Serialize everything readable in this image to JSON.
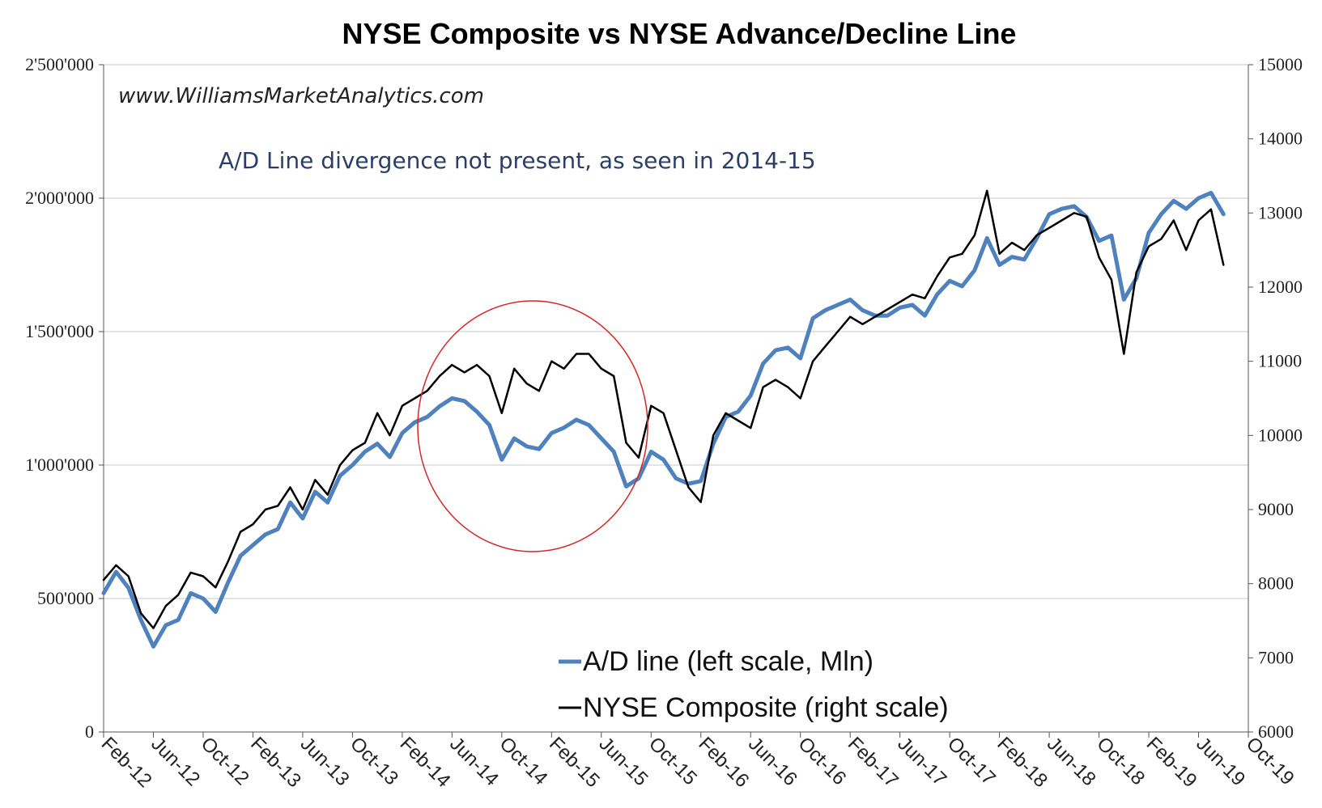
{
  "chart_data": {
    "type": "line",
    "title": "NYSE Composite vs NYSE Advance/Decline Line",
    "watermark": "www.WilliamsMarketAnalytics.com",
    "annotation": "A/D Line divergence not present, as seen in 2014-15",
    "x_tick_labels": [
      "Feb-12",
      "Jun-12",
      "Oct-12",
      "Feb-13",
      "Jun-13",
      "Oct-13",
      "Feb-14",
      "Jun-14",
      "Oct-14",
      "Feb-15",
      "Jun-15",
      "Oct-15",
      "Feb-16",
      "Jun-16",
      "Oct-16",
      "Feb-17",
      "Jun-17",
      "Oct-17",
      "Feb-18",
      "Jun-18",
      "Oct-18",
      "Feb-19",
      "Jun-19",
      "Oct-19"
    ],
    "y_left": {
      "min": 0,
      "max": 2500000,
      "ticks": [
        0,
        500000,
        1000000,
        1500000,
        2000000,
        2500000
      ],
      "tick_labels": [
        "0",
        "500'000",
        "1'000'000",
        "1'500'000",
        "2'000'000",
        "2'500'000"
      ]
    },
    "y_right": {
      "min": 6000,
      "max": 15000,
      "ticks": [
        6000,
        7000,
        8000,
        9000,
        10000,
        11000,
        12000,
        13000,
        14000,
        15000
      ],
      "tick_labels": [
        "6000",
        "7000",
        "8000",
        "9000",
        "10000",
        "11000",
        "12000",
        "13000",
        "14000",
        "15000"
      ]
    },
    "grid": "horizontal",
    "legend_position": "bottom-center",
    "highlight": "circle around Jun-14 to Oct-15",
    "series": [
      {
        "name": "A/D line (left scale, Mln)",
        "axis": "left",
        "color": "#4f81bd",
        "points": [
          [
            "Feb-12",
            520000
          ],
          [
            "Mar-12",
            600000
          ],
          [
            "Apr-12",
            540000
          ],
          [
            "May-12",
            420000
          ],
          [
            "Jun-12",
            320000
          ],
          [
            "Jul-12",
            400000
          ],
          [
            "Aug-12",
            420000
          ],
          [
            "Sep-12",
            520000
          ],
          [
            "Oct-12",
            500000
          ],
          [
            "Nov-12",
            450000
          ],
          [
            "Dec-12",
            560000
          ],
          [
            "Jan-13",
            660000
          ],
          [
            "Feb-13",
            700000
          ],
          [
            "Mar-13",
            740000
          ],
          [
            "Apr-13",
            760000
          ],
          [
            "May-13",
            860000
          ],
          [
            "Jun-13",
            800000
          ],
          [
            "Jul-13",
            900000
          ],
          [
            "Aug-13",
            860000
          ],
          [
            "Sep-13",
            960000
          ],
          [
            "Oct-13",
            1000000
          ],
          [
            "Nov-13",
            1050000
          ],
          [
            "Dec-13",
            1080000
          ],
          [
            "Jan-14",
            1030000
          ],
          [
            "Feb-14",
            1120000
          ],
          [
            "Mar-14",
            1160000
          ],
          [
            "Apr-14",
            1180000
          ],
          [
            "May-14",
            1220000
          ],
          [
            "Jun-14",
            1250000
          ],
          [
            "Jul-14",
            1240000
          ],
          [
            "Aug-14",
            1200000
          ],
          [
            "Sep-14",
            1150000
          ],
          [
            "Oct-14",
            1020000
          ],
          [
            "Nov-14",
            1100000
          ],
          [
            "Dec-14",
            1070000
          ],
          [
            "Jan-15",
            1060000
          ],
          [
            "Feb-15",
            1120000
          ],
          [
            "Mar-15",
            1140000
          ],
          [
            "Apr-15",
            1170000
          ],
          [
            "May-15",
            1150000
          ],
          [
            "Jun-15",
            1100000
          ],
          [
            "Jul-15",
            1050000
          ],
          [
            "Aug-15",
            920000
          ],
          [
            "Sep-15",
            950000
          ],
          [
            "Oct-15",
            1050000
          ],
          [
            "Nov-15",
            1020000
          ],
          [
            "Dec-15",
            950000
          ],
          [
            "Jan-16",
            930000
          ],
          [
            "Feb-16",
            940000
          ],
          [
            "Mar-16",
            1080000
          ],
          [
            "Apr-16",
            1180000
          ],
          [
            "May-16",
            1200000
          ],
          [
            "Jun-16",
            1260000
          ],
          [
            "Jul-16",
            1380000
          ],
          [
            "Aug-16",
            1430000
          ],
          [
            "Sep-16",
            1440000
          ],
          [
            "Oct-16",
            1400000
          ],
          [
            "Nov-16",
            1550000
          ],
          [
            "Dec-16",
            1580000
          ],
          [
            "Jan-17",
            1600000
          ],
          [
            "Feb-17",
            1620000
          ],
          [
            "Mar-17",
            1580000
          ],
          [
            "Apr-17",
            1560000
          ],
          [
            "May-17",
            1560000
          ],
          [
            "Jun-17",
            1590000
          ],
          [
            "Jul-17",
            1600000
          ],
          [
            "Aug-17",
            1560000
          ],
          [
            "Sep-17",
            1640000
          ],
          [
            "Oct-17",
            1690000
          ],
          [
            "Nov-17",
            1670000
          ],
          [
            "Dec-17",
            1730000
          ],
          [
            "Jan-18",
            1850000
          ],
          [
            "Feb-18",
            1750000
          ],
          [
            "Mar-18",
            1780000
          ],
          [
            "Apr-18",
            1770000
          ],
          [
            "May-18",
            1850000
          ],
          [
            "Jun-18",
            1940000
          ],
          [
            "Jul-18",
            1960000
          ],
          [
            "Aug-18",
            1970000
          ],
          [
            "Sep-18",
            1930000
          ],
          [
            "Oct-18",
            1840000
          ],
          [
            "Nov-18",
            1860000
          ],
          [
            "Dec-18",
            1620000
          ],
          [
            "Jan-19",
            1700000
          ],
          [
            "Feb-19",
            1870000
          ],
          [
            "Mar-19",
            1940000
          ],
          [
            "Apr-19",
            1990000
          ],
          [
            "May-19",
            1960000
          ],
          [
            "Jun-19",
            2000000
          ],
          [
            "Jul-19",
            2020000
          ],
          [
            "Aug-19",
            1940000
          ]
        ]
      },
      {
        "name": "NYSE Composite (right scale)",
        "axis": "right",
        "color": "#000000",
        "points": [
          [
            "Feb-12",
            8050
          ],
          [
            "Mar-12",
            8250
          ],
          [
            "Apr-12",
            8100
          ],
          [
            "May-12",
            7600
          ],
          [
            "Jun-12",
            7400
          ],
          [
            "Jul-12",
            7700
          ],
          [
            "Aug-12",
            7850
          ],
          [
            "Sep-12",
            8150
          ],
          [
            "Oct-12",
            8100
          ],
          [
            "Nov-12",
            7950
          ],
          [
            "Dec-12",
            8300
          ],
          [
            "Jan-13",
            8700
          ],
          [
            "Feb-13",
            8800
          ],
          [
            "Mar-13",
            9000
          ],
          [
            "Apr-13",
            9050
          ],
          [
            "May-13",
            9300
          ],
          [
            "Jun-13",
            9000
          ],
          [
            "Jul-13",
            9400
          ],
          [
            "Aug-13",
            9200
          ],
          [
            "Sep-13",
            9600
          ],
          [
            "Oct-13",
            9800
          ],
          [
            "Nov-13",
            9900
          ],
          [
            "Dec-13",
            10300
          ],
          [
            "Jan-14",
            10000
          ],
          [
            "Feb-14",
            10400
          ],
          [
            "Mar-14",
            10500
          ],
          [
            "Apr-14",
            10600
          ],
          [
            "May-14",
            10800
          ],
          [
            "Jun-14",
            10950
          ],
          [
            "Jul-14",
            10850
          ],
          [
            "Aug-14",
            10950
          ],
          [
            "Sep-14",
            10800
          ],
          [
            "Oct-14",
            10300
          ],
          [
            "Nov-14",
            10900
          ],
          [
            "Dec-14",
            10700
          ],
          [
            "Jan-15",
            10600
          ],
          [
            "Feb-15",
            11000
          ],
          [
            "Mar-15",
            10900
          ],
          [
            "Apr-15",
            11100
          ],
          [
            "May-15",
            11100
          ],
          [
            "Jun-15",
            10900
          ],
          [
            "Jul-15",
            10800
          ],
          [
            "Aug-15",
            9900
          ],
          [
            "Sep-15",
            9700
          ],
          [
            "Oct-15",
            10400
          ],
          [
            "Nov-15",
            10300
          ],
          [
            "Dec-15",
            9800
          ],
          [
            "Jan-16",
            9300
          ],
          [
            "Feb-16",
            9100
          ],
          [
            "Mar-16",
            10000
          ],
          [
            "Apr-16",
            10300
          ],
          [
            "May-16",
            10200
          ],
          [
            "Jun-16",
            10100
          ],
          [
            "Jul-16",
            10650
          ],
          [
            "Aug-16",
            10750
          ],
          [
            "Sep-16",
            10650
          ],
          [
            "Oct-16",
            10500
          ],
          [
            "Nov-16",
            11000
          ],
          [
            "Dec-16",
            11200
          ],
          [
            "Jan-17",
            11400
          ],
          [
            "Feb-17",
            11600
          ],
          [
            "Mar-17",
            11500
          ],
          [
            "Apr-17",
            11600
          ],
          [
            "May-17",
            11700
          ],
          [
            "Jun-17",
            11800
          ],
          [
            "Jul-17",
            11900
          ],
          [
            "Aug-17",
            11850
          ],
          [
            "Sep-17",
            12150
          ],
          [
            "Oct-17",
            12400
          ],
          [
            "Nov-17",
            12450
          ],
          [
            "Dec-17",
            12700
          ],
          [
            "Jan-18",
            13300
          ],
          [
            "Feb-18",
            12450
          ],
          [
            "Mar-18",
            12600
          ],
          [
            "Apr-18",
            12500
          ],
          [
            "May-18",
            12700
          ],
          [
            "Jun-18",
            12800
          ],
          [
            "Jul-18",
            12900
          ],
          [
            "Aug-18",
            13000
          ],
          [
            "Sep-18",
            12950
          ],
          [
            "Oct-18",
            12400
          ],
          [
            "Nov-18",
            12100
          ],
          [
            "Dec-18",
            11100
          ],
          [
            "Jan-19",
            12200
          ],
          [
            "Feb-19",
            12550
          ],
          [
            "Mar-19",
            12650
          ],
          [
            "Apr-19",
            12900
          ],
          [
            "May-19",
            12500
          ],
          [
            "Jun-19",
            12900
          ],
          [
            "Jul-19",
            13050
          ],
          [
            "Aug-19",
            12300
          ]
        ]
      }
    ]
  }
}
